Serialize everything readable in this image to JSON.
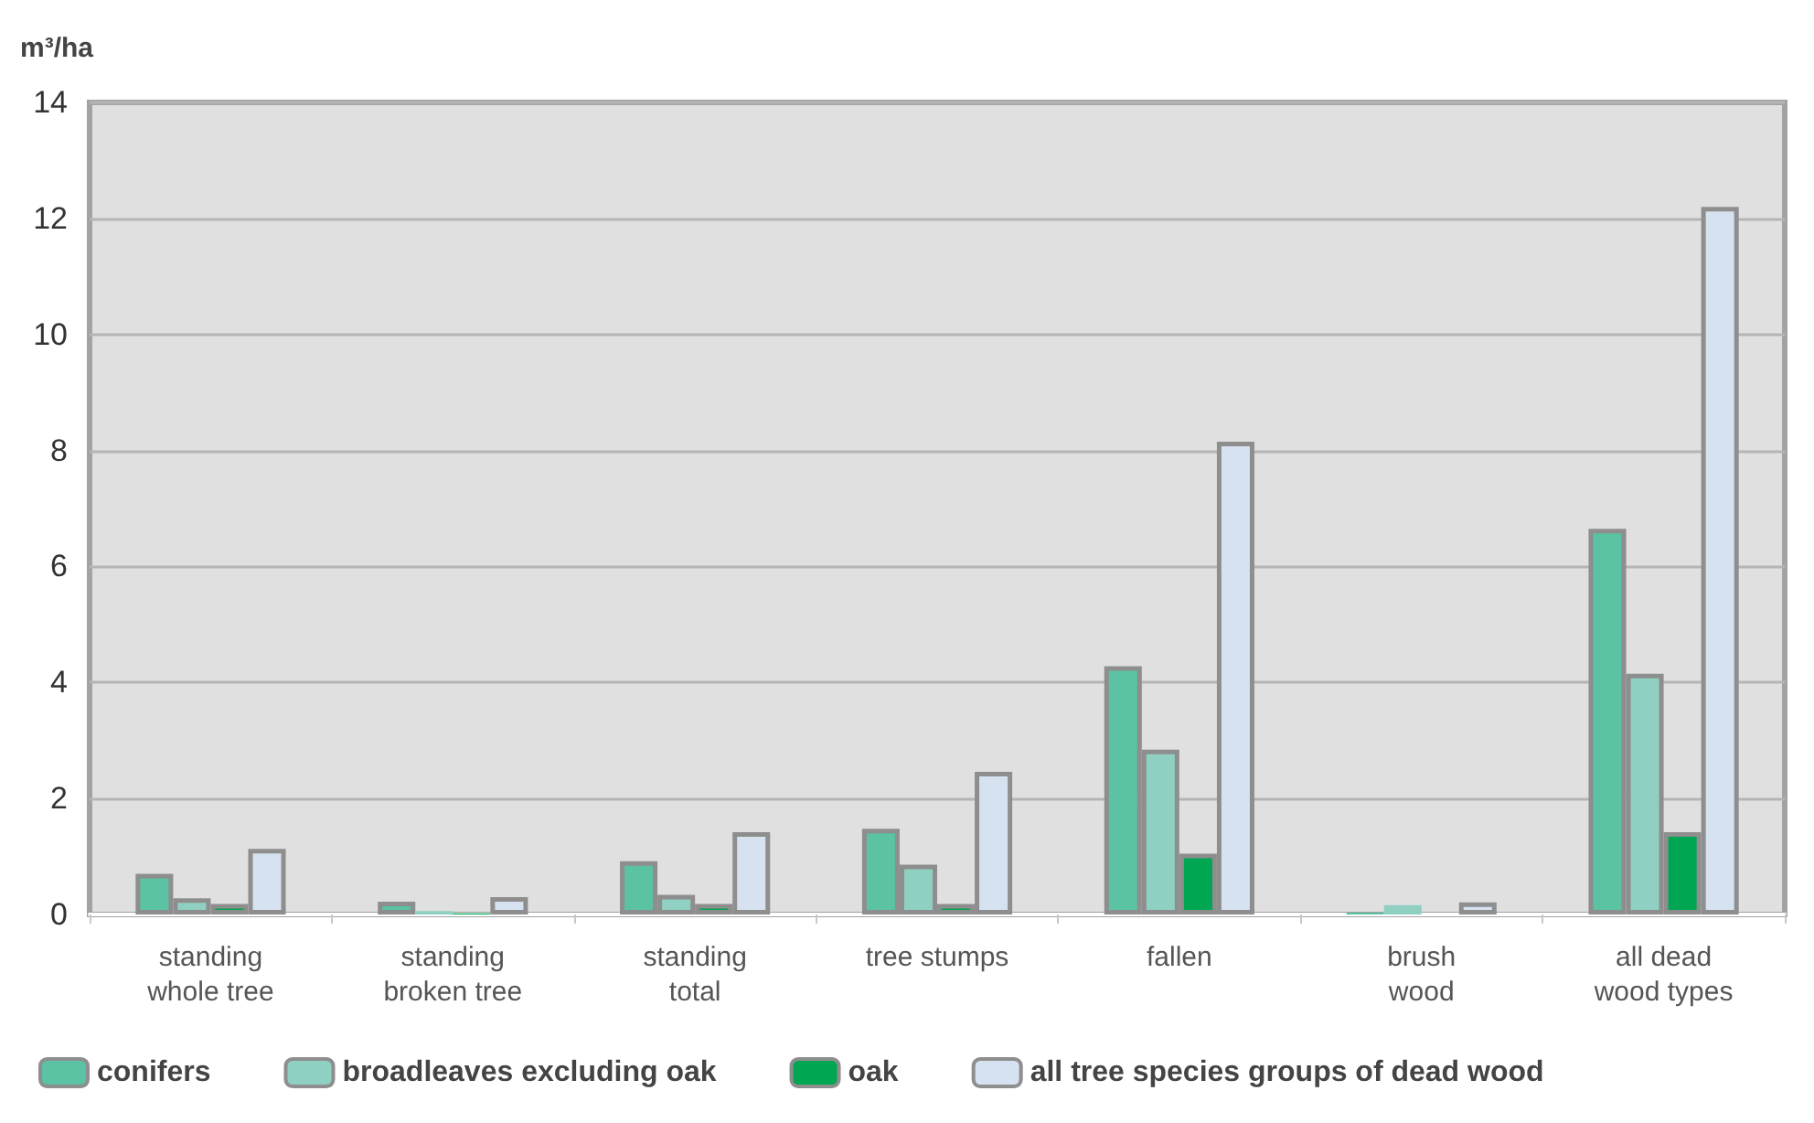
{
  "chart_data": {
    "type": "bar",
    "ylabel": "m³/ha",
    "categories": [
      "standing\nwhole tree",
      "standing\nbroken tree",
      "standing\ntotal",
      "tree stumps",
      "fallen",
      "brush\nwood",
      "all dead\nwood types"
    ],
    "series": [
      {
        "name": "conifers",
        "color": "#5bc2a3",
        "values": [
          0.7,
          0.22,
          0.92,
          1.48,
          4.28,
          0.03,
          6.65
        ]
      },
      {
        "name": "broadleaves excluding oak",
        "color": "#8fd0c2",
        "values": [
          0.28,
          0.06,
          0.34,
          0.86,
          2.84,
          0.16,
          4.15
        ]
      },
      {
        "name": "oak",
        "color": "#00a651",
        "values": [
          0.18,
          0.02,
          0.18,
          0.18,
          1.05,
          0,
          1.42
        ]
      },
      {
        "name": "all tree species groups of dead wood",
        "color": "#d6e2f0",
        "values": [
          1.13,
          0.3,
          1.42,
          2.46,
          8.15,
          0.21,
          12.2
        ]
      }
    ],
    "ylim": [
      0,
      14
    ],
    "yticks": [
      0,
      2,
      4,
      6,
      8,
      10,
      12,
      14
    ],
    "grid": "y",
    "legend": "bottom left"
  }
}
